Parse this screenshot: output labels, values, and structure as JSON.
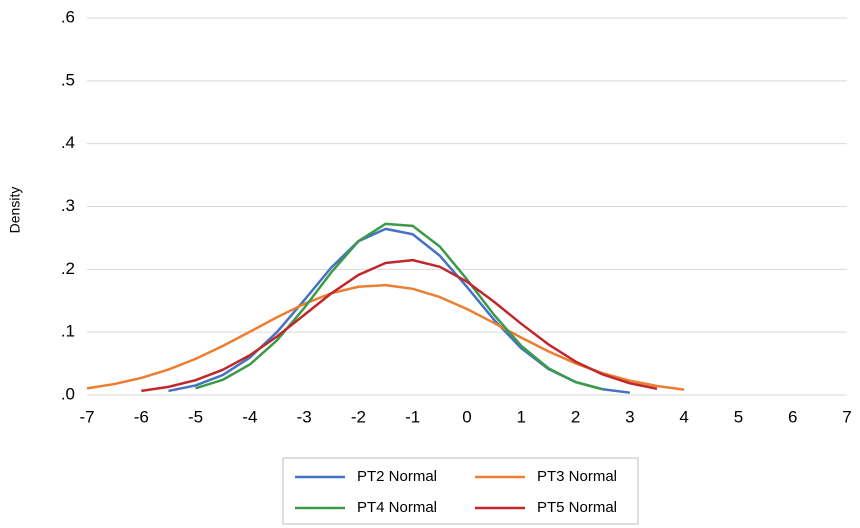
{
  "chart_data": {
    "type": "line",
    "y_label": "Density",
    "x": [
      -7,
      -6.5,
      -6,
      -5.5,
      -5,
      -4.5,
      -4,
      -3.5,
      -3,
      -2.5,
      -2,
      -1.5,
      -1,
      -0.5,
      0,
      0.5,
      1,
      1.5,
      2,
      2.5,
      3,
      3.5,
      4
    ],
    "series": [
      {
        "name": "PT2 Normal",
        "color": "#4472c4",
        "values": [
          null,
          null,
          null,
          0.0065,
          0.0152,
          0.0317,
          0.0595,
          0.1002,
          0.1506,
          0.2029,
          0.2448,
          0.2644,
          0.2558,
          0.2216,
          0.1719,
          0.1194,
          0.0743,
          0.0414,
          0.0206,
          0.0092,
          0.0037,
          null,
          null
        ]
      },
      {
        "name": "PT3 Normal",
        "color": "#ed7d31",
        "values": [
          0.0106,
          0.0174,
          0.0272,
          0.0405,
          0.0575,
          0.078,
          0.1006,
          0.1237,
          0.1449,
          0.1619,
          0.1723,
          0.1748,
          0.169,
          0.1558,
          0.1368,
          0.1145,
          0.0913,
          0.0695,
          0.0503,
          0.0347,
          0.0228,
          0.0143,
          0.0086
        ]
      },
      {
        "name": "PT4 Normal",
        "color": "#3c9a48",
        "values": [
          null,
          null,
          null,
          null,
          0.0106,
          0.0241,
          0.0486,
          0.087,
          0.1383,
          0.1952,
          0.2448,
          0.2724,
          0.2692,
          0.2362,
          0.1839,
          0.1273,
          0.0782,
          0.0426,
          0.0206,
          0.0089,
          null,
          null,
          null
        ]
      },
      {
        "name": "PT5 Normal",
        "color": "#c0282d",
        "values": [
          null,
          null,
          0.0066,
          0.0129,
          0.0236,
          0.0401,
          0.0633,
          0.0931,
          0.1273,
          0.1617,
          0.1911,
          0.2101,
          0.2147,
          0.204,
          0.1803,
          0.1482,
          0.1133,
          0.0805,
          0.0532,
          0.0327,
          0.0187,
          0.0099,
          null
        ]
      }
    ],
    "xlim": [
      -7,
      7
    ],
    "xticks": [
      -7,
      -6,
      -5,
      -4,
      -3,
      -2,
      -1,
      0,
      1,
      2,
      3,
      4,
      5,
      6,
      7
    ],
    "ylim": [
      0,
      0.6
    ],
    "yticks": [
      {
        "value": 0,
        "label": ".0"
      },
      {
        "value": 0.1,
        "label": ".1"
      },
      {
        "value": 0.2,
        "label": ".2"
      },
      {
        "value": 0.3,
        "label": ".3"
      },
      {
        "value": 0.4,
        "label": ".4"
      },
      {
        "value": 0.5,
        "label": ".5"
      },
      {
        "value": 0.6,
        "label": ".6"
      }
    ],
    "grid": true,
    "legend": "bottom"
  }
}
